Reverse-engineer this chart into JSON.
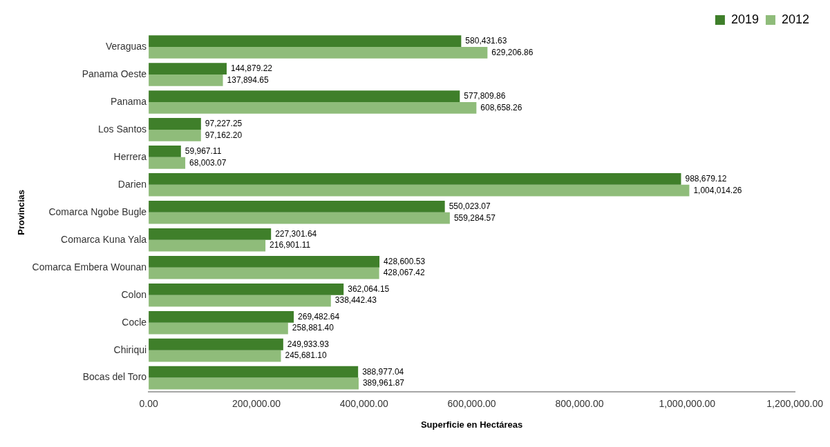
{
  "chart_data": {
    "type": "bar",
    "orientation": "horizontal",
    "xlabel": "Superficie en Hectáreas",
    "ylabel": "Provincias",
    "categories": [
      "Veraguas",
      "Panama Oeste",
      "Panama",
      "Los Santos",
      "Herrera",
      "Darien",
      "Comarca Ngobe Bugle",
      "Comarca Kuna Yala",
      "Comarca Embera Wounan",
      "Colon",
      "Cocle",
      "Chiriqui",
      "Bocas del Toro"
    ],
    "series": [
      {
        "name": "2019",
        "color": "#3f7f2a",
        "values": [
          580431.63,
          144879.22,
          577809.86,
          97227.25,
          59967.11,
          988679.12,
          550023.07,
          227301.64,
          428600.53,
          362064.15,
          269482.64,
          249933.93,
          388977.04
        ],
        "value_labels": [
          "580,431.63",
          "144,879.22",
          "577,809.86",
          "97,227.25",
          "59,967.11",
          "988,679.12",
          "550,023.07",
          "227,301.64",
          "428,600.53",
          "362,064.15",
          "269,482.64",
          "249,933.93",
          "388,977.04"
        ]
      },
      {
        "name": "2012",
        "color": "#8fbc7a",
        "values": [
          629206.86,
          137894.65,
          608658.26,
          97162.2,
          68003.07,
          1004014.26,
          559284.57,
          216901.11,
          428067.42,
          338442.43,
          258881.4,
          245681.1,
          389961.87
        ],
        "value_labels": [
          "629,206.86",
          "137,894.65",
          "608,658.26",
          "97,162.20",
          "68,003.07",
          "1,004,014.26",
          "559,284.57",
          "216,901.11",
          "428,067.42",
          "338,442.43",
          "258,881.40",
          "245,681.10",
          "389,961.87"
        ]
      }
    ],
    "xlim": [
      0,
      1200000
    ],
    "xticks": [
      {
        "value": 0,
        "label": "0.00"
      },
      {
        "value": 200000,
        "label": "200,000.00"
      },
      {
        "value": 400000,
        "label": "400,000.00"
      },
      {
        "value": 600000,
        "label": "600,000.00"
      },
      {
        "value": 800000,
        "label": "800,000.00"
      },
      {
        "value": 1000000,
        "label": "1,000,000.00"
      },
      {
        "value": 1200000,
        "label": "1,200,000.00"
      }
    ],
    "grid": false,
    "legend": "top right"
  }
}
